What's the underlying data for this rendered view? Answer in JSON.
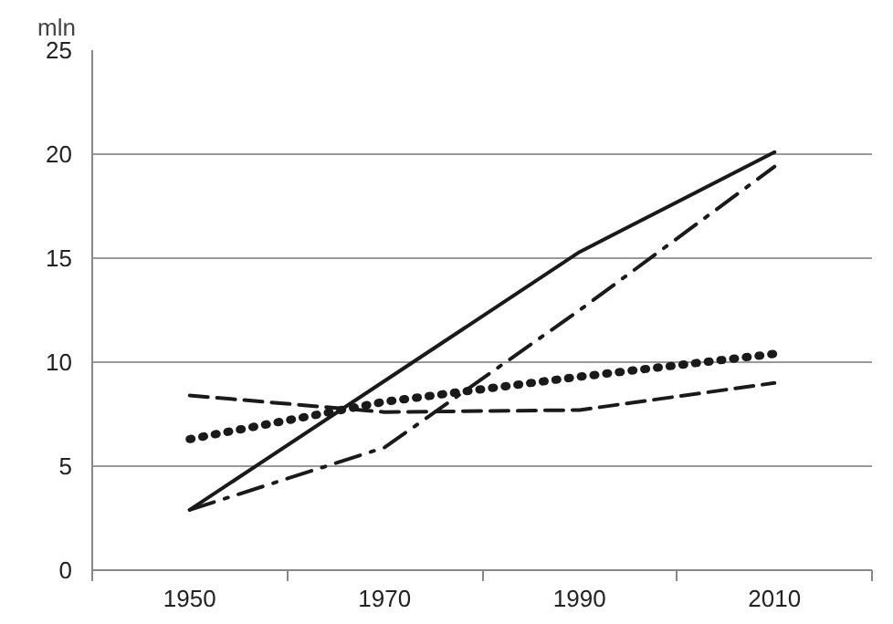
{
  "chart_data": {
    "type": "line",
    "ylabel": "mln",
    "x": [
      1950,
      1970,
      1990,
      2010
    ],
    "xlim": [
      1940,
      2020
    ],
    "xticks": [
      {
        "value": 1940,
        "label": null
      },
      1950,
      {
        "value": 1960,
        "label": null
      },
      1970,
      {
        "value": 1980,
        "label": null
      },
      1990,
      {
        "value": 2000,
        "label": null
      },
      2010,
      {
        "value": 2020,
        "label": null
      }
    ],
    "ylim": [
      0,
      25
    ],
    "yticks": [
      0,
      5,
      10,
      15,
      20,
      25
    ],
    "grid": "y",
    "marker": "none",
    "series": [
      {
        "color": "#1a1a1a",
        "line_style": "solid",
        "values": [
          2.9,
          9.1,
          15.3,
          20.1
        ]
      },
      {
        "color": "#1a1a1a",
        "line_style": "dashdot",
        "values": [
          2.9,
          5.9,
          12.5,
          19.4
        ]
      },
      {
        "color": "#1a1a1a",
        "line_style": "dotted",
        "values": [
          6.3,
          8.1,
          9.3,
          10.4
        ]
      },
      {
        "color": "#1a1a1a",
        "line_style": "dashed",
        "values": [
          8.4,
          7.6,
          7.7,
          9.0
        ]
      }
    ]
  }
}
